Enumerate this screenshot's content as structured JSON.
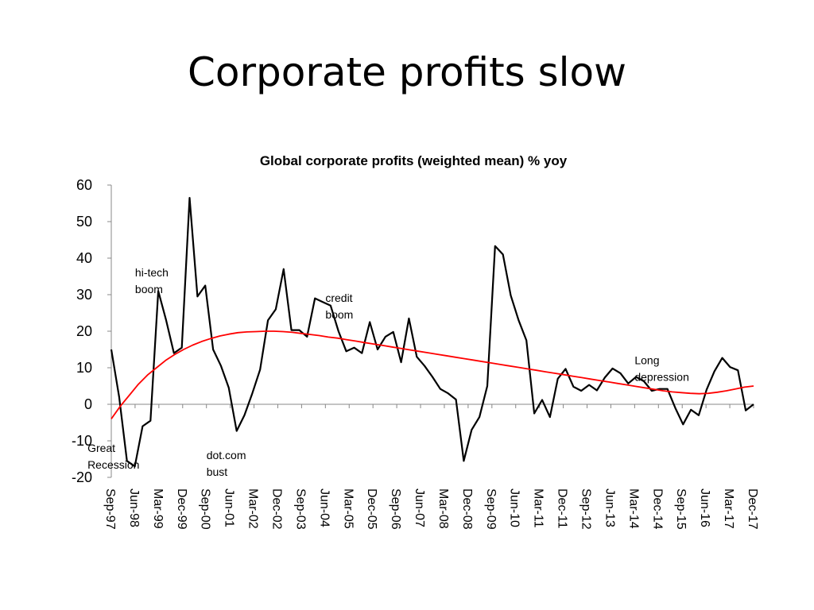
{
  "slide": {
    "title": "Corporate profits slow"
  },
  "chart_data": {
    "type": "line",
    "title": "Global corporate profits (weighted mean) % yoy",
    "xlabel": "",
    "ylabel": "",
    "ylim": [
      -20,
      60
    ],
    "yticks": [
      "60",
      "50",
      "40",
      "30",
      "20",
      "10",
      "0",
      "-10",
      "-20"
    ],
    "x_tick_labels": [
      "Sep-97",
      "Jun-98",
      "Mar-99",
      "Dec-99",
      "Sep-00",
      "Jun-01",
      "Mar-02",
      "Dec-02",
      "Sep-03",
      "Jun-04",
      "Mar-05",
      "Dec-05",
      "Sep-06",
      "Jun-07",
      "Mar-08",
      "Dec-08",
      "Sep-09",
      "Jun-10",
      "Mar-11",
      "Dec-11",
      "Sep-12",
      "Jun-13",
      "Mar-14",
      "Dec-14",
      "Sep-15",
      "Jun-16",
      "Mar-17",
      "Dec-17"
    ],
    "grid": false,
    "legend": "none",
    "series": [
      {
        "color": "#000000",
        "values": [
          15,
          2,
          -15.5,
          -17,
          -6,
          -4.5,
          31,
          23,
          14,
          15.5,
          56.5,
          29.5,
          32.5,
          15,
          10.5,
          4.5,
          -7.3,
          -3,
          3,
          9.5,
          23,
          26,
          37,
          20.3,
          20.3,
          18.5,
          29,
          28,
          27,
          20,
          14.5,
          15.5,
          14,
          22.5,
          15,
          18.5,
          19.8,
          11.5,
          23.5,
          13,
          10.5,
          7.5,
          4.2,
          3,
          1.3,
          -15.5,
          -7,
          -3.5,
          5,
          43.3,
          41,
          29.8,
          23,
          17.5,
          -2.5,
          1.2,
          -3.5,
          7,
          9.7,
          4.8,
          3.7,
          5.3,
          3.8,
          7.3,
          9.8,
          8.5,
          5.7,
          7.5,
          6.3,
          3.7,
          4.2,
          4.2,
          -1,
          -5.5,
          -1.5,
          -3,
          4,
          9,
          12.7,
          10.2,
          9.3,
          -1.7,
          0
        ]
      },
      {
        "color": "#ff0000",
        "trend": true,
        "values": [
          -4,
          -0.5,
          2.5,
          5.5,
          8,
          10,
          12,
          13.6,
          15,
          16.2,
          17.2,
          18,
          18.7,
          19.2,
          19.6,
          19.8,
          19.9,
          20,
          20,
          19.9,
          19.7,
          19.4,
          19.1,
          18.8,
          18.4,
          18.1,
          17.7,
          17.3,
          16.9,
          16.5,
          16.1,
          15.7,
          15.3,
          14.9,
          14.5,
          14.1,
          13.7,
          13.3,
          12.9,
          12.5,
          12.1,
          11.7,
          11.3,
          10.9,
          10.5,
          10.1,
          9.7,
          9.3,
          8.9,
          8.5,
          8.1,
          7.7,
          7.3,
          6.9,
          6.5,
          6.1,
          5.7,
          5.3,
          4.9,
          4.5,
          4.1,
          3.7,
          3.4,
          3.2,
          3,
          2.9,
          3,
          3.3,
          3.7,
          4.2,
          4.7,
          5
        ]
      }
    ],
    "annotations": [
      {
        "lines": [
          "hi-tech",
          "boom"
        ],
        "x_label": "Jun-98",
        "y": 35
      },
      {
        "lines": [
          "dot.com",
          "bust"
        ],
        "x_label": "Sep-00",
        "y": -15
      },
      {
        "lines": [
          "credit",
          "boom"
        ],
        "x_label": "Jun-04",
        "y": 28
      },
      {
        "lines": [
          "Great",
          "Recession"
        ],
        "x_label": "Mar-07",
        "y": -13
      },
      {
        "lines": [
          "Long",
          "depression"
        ],
        "x_label": "Mar-14",
        "y": 11
      }
    ]
  }
}
